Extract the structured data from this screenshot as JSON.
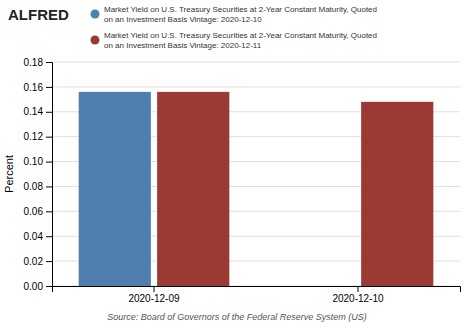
{
  "chart_data": {
    "type": "bar",
    "categories": [
      "2020-12-09",
      "2020-12-10"
    ],
    "series": [
      {
        "name": "Market Yield on U.S. Treasury Securities at 2-Year Constant Maturity, Quoted\non an Investment Basis Vintage: 2020-12-10",
        "color": "#4f7fae",
        "values": [
          0.156,
          null
        ]
      },
      {
        "name": "Market Yield on U.S. Treasury Securities at 2-Year Constant Maturity, Quoted\non an Investment Basis Vintage: 2020-12-11",
        "color": "#9b3a35",
        "values": [
          0.156,
          0.148
        ]
      }
    ],
    "y_label": "Percent",
    "ylim": [
      0,
      0.18
    ],
    "yticks": [
      {
        "value": 0.0,
        "label": "0.00"
      },
      0.02,
      0.04,
      0.06,
      0.08,
      {
        "value": 0.1,
        "label": "0.10"
      },
      0.12,
      0.14,
      0.16,
      0.18
    ],
    "grid": true,
    "legend": "top",
    "annotations": [
      "ALFRED",
      "Source: Board of Governors of the Federal Reserve System (US)"
    ]
  }
}
